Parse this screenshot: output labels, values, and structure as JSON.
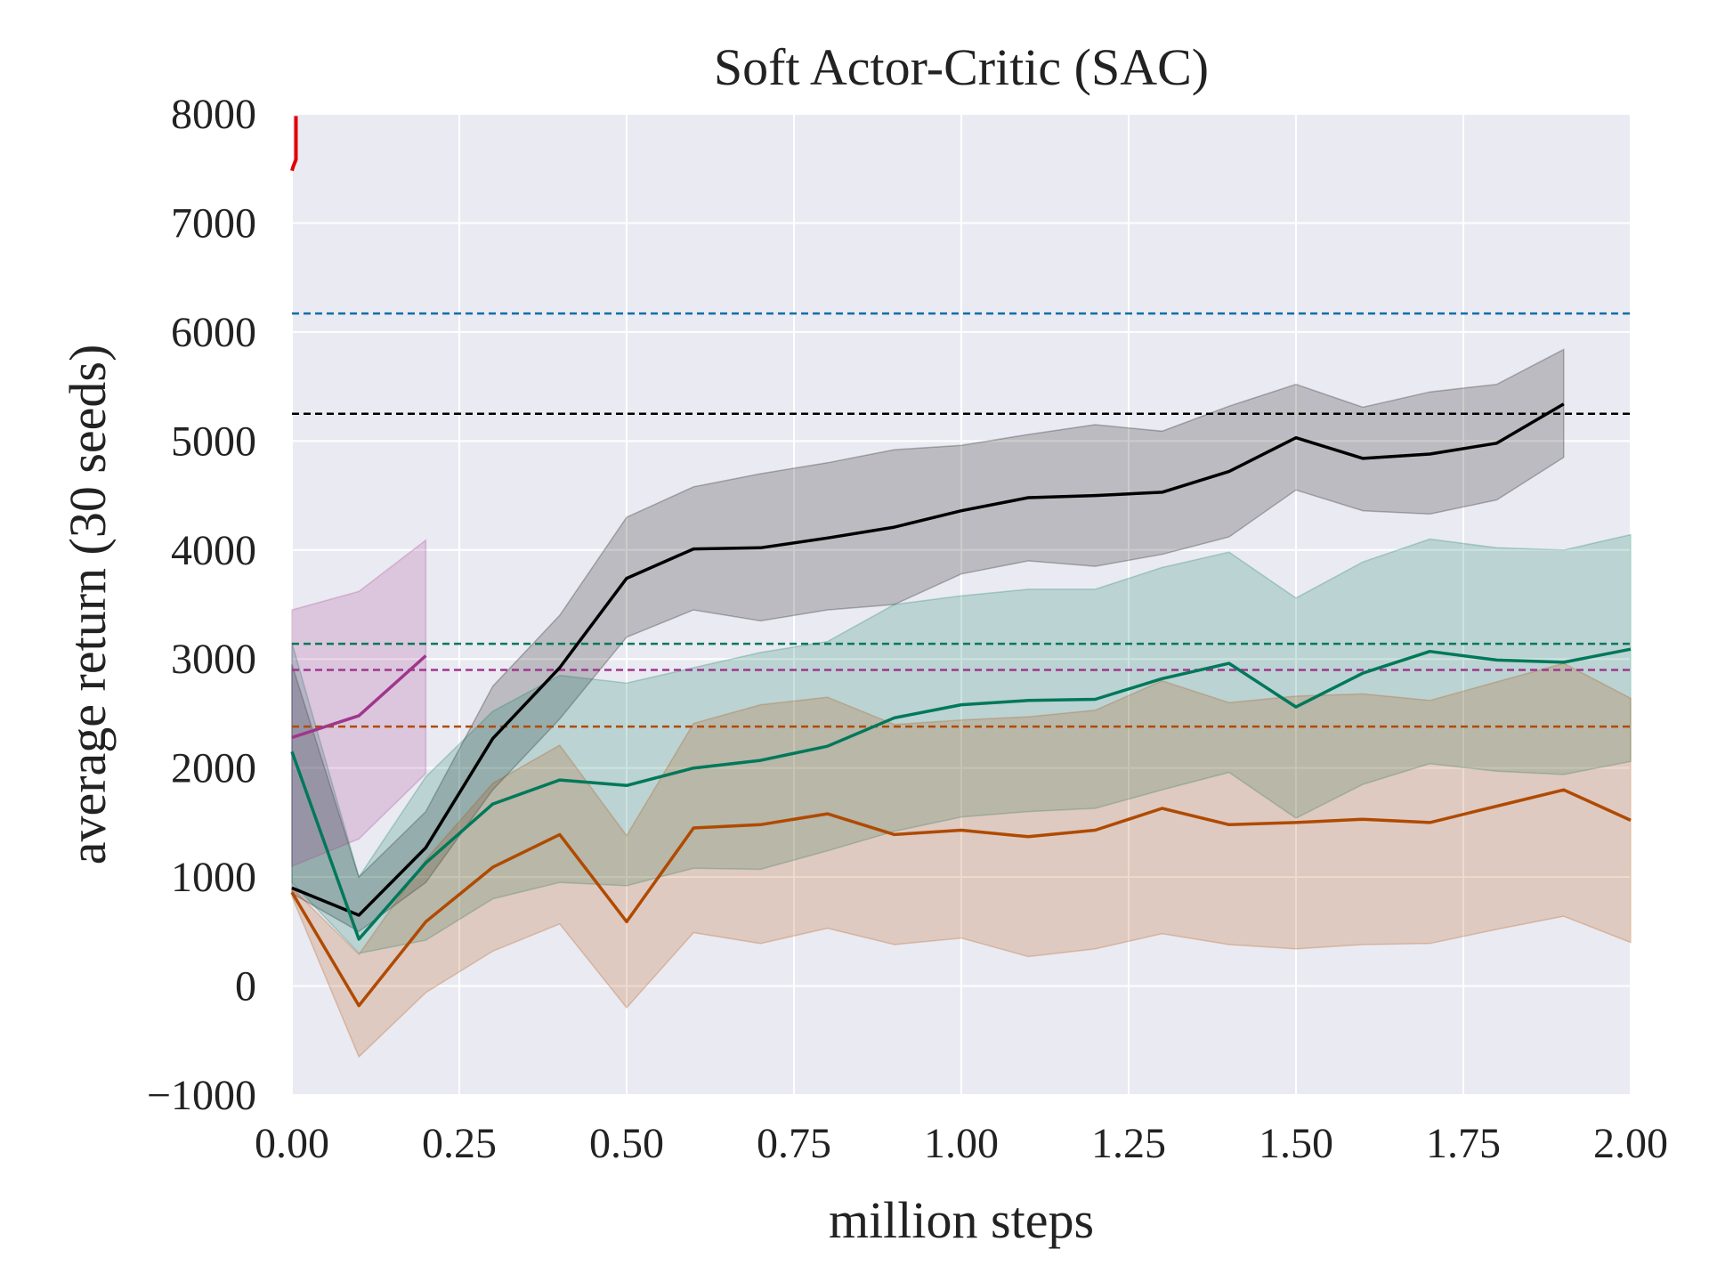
{
  "chart_data": {
    "type": "line",
    "title": "Soft Actor-Critic (SAC)",
    "xlabel": "million steps",
    "ylabel": "average return (30 seeds)",
    "xlim": [
      0,
      2.0
    ],
    "ylim": [
      -1000,
      8000
    ],
    "xticks": [
      "0.00",
      "0.25",
      "0.50",
      "0.75",
      "1.00",
      "1.25",
      "1.50",
      "1.75",
      "2.00"
    ],
    "yticks": [
      "−1000",
      "0",
      "1000",
      "2000",
      "3000",
      "4000",
      "5000",
      "6000",
      "7000",
      "8000"
    ],
    "grid": true,
    "legend": "none",
    "colors": {
      "background": "#eaeaf2",
      "grid": "#ffffff",
      "black": "#000000",
      "green": "#00785a",
      "orange": "#b04a00",
      "purple": "#a0368c",
      "red": "#e00000",
      "blue": "#0a6ea8"
    },
    "series": [
      {
        "color": "black",
        "x": [
          0,
          0.1,
          0.2,
          0.3,
          0.4,
          0.5,
          0.6,
          0.7,
          0.8,
          0.9,
          1.0,
          1.1,
          1.2,
          1.3,
          1.4,
          1.5,
          1.6,
          1.7,
          1.8,
          1.9
        ],
        "y": [
          900,
          650,
          1270,
          2270,
          2920,
          3740,
          4010,
          4020,
          4110,
          4210,
          4360,
          4480,
          4500,
          4530,
          4720,
          5030,
          4840,
          4880,
          4980,
          5340
        ],
        "lower": [
          850,
          500,
          950,
          1800,
          2450,
          3200,
          3450,
          3350,
          3450,
          3500,
          3780,
          3900,
          3850,
          3960,
          4120,
          4550,
          4360,
          4330,
          4460,
          4850
        ],
        "upper": [
          2950,
          1000,
          1600,
          2750,
          3400,
          4300,
          4580,
          4700,
          4800,
          4920,
          4960,
          5060,
          5150,
          5090,
          5320,
          5520,
          5310,
          5450,
          5520,
          5840
        ]
      },
      {
        "color": "green",
        "x": [
          0,
          0.1,
          0.2,
          0.3,
          0.4,
          0.5,
          0.6,
          0.7,
          0.8,
          0.9,
          1.0,
          1.1,
          1.2,
          1.3,
          1.4,
          1.5,
          1.6,
          1.7,
          1.8,
          1.9,
          2.0
        ],
        "y": [
          2150,
          430,
          1130,
          1670,
          1890,
          1840,
          2000,
          2070,
          2200,
          2460,
          2580,
          2620,
          2630,
          2820,
          2960,
          2560,
          2870,
          3070,
          2990,
          2970,
          3090
        ],
        "lower": [
          950,
          300,
          420,
          800,
          950,
          920,
          1080,
          1070,
          1240,
          1420,
          1550,
          1600,
          1630,
          1800,
          1960,
          1540,
          1850,
          2040,
          1970,
          1940,
          2060
        ],
        "upper": [
          3150,
          1000,
          1920,
          2520,
          2850,
          2780,
          2920,
          3060,
          3160,
          3500,
          3580,
          3640,
          3640,
          3840,
          3980,
          3560,
          3890,
          4100,
          4020,
          4000,
          4140
        ]
      },
      {
        "color": "orange",
        "x": [
          0,
          0.1,
          0.2,
          0.3,
          0.4,
          0.5,
          0.6,
          0.7,
          0.8,
          0.9,
          1.0,
          1.1,
          1.2,
          1.3,
          1.4,
          1.5,
          1.6,
          1.7,
          1.8,
          1.9,
          2.0
        ],
        "y": [
          860,
          -180,
          590,
          1090,
          1390,
          590,
          1450,
          1480,
          1580,
          1390,
          1430,
          1370,
          1430,
          1630,
          1480,
          1500,
          1530,
          1500,
          1650,
          1800,
          1520
        ],
        "lower": [
          820,
          -650,
          -60,
          320,
          570,
          -200,
          490,
          390,
          530,
          380,
          440,
          270,
          340,
          480,
          380,
          340,
          380,
          390,
          520,
          640,
          400
        ],
        "upper": [
          900,
          290,
          1160,
          1860,
          2210,
          1380,
          2410,
          2580,
          2650,
          2400,
          2440,
          2470,
          2530,
          2800,
          2600,
          2660,
          2680,
          2620,
          2790,
          2960,
          2640
        ]
      },
      {
        "color": "purple",
        "x": [
          0,
          0.1,
          0.2
        ],
        "y": [
          2280,
          2480,
          3030
        ],
        "lower": [
          1100,
          1350,
          1950
        ],
        "upper": [
          3450,
          3620,
          4090
        ]
      },
      {
        "color": "red",
        "x": [
          0.0,
          0.002,
          0.006,
          0.006,
          0.006
        ],
        "y": [
          7480,
          7520,
          7580,
          7800,
          7980
        ],
        "lower": [],
        "upper": []
      }
    ],
    "reference_lines": [
      {
        "color": "blue",
        "y": 6170
      },
      {
        "color": "black",
        "y": 5250
      },
      {
        "color": "green",
        "y": 3140
      },
      {
        "color": "purple",
        "y": 2900
      },
      {
        "color": "orange",
        "y": 2380
      }
    ]
  }
}
